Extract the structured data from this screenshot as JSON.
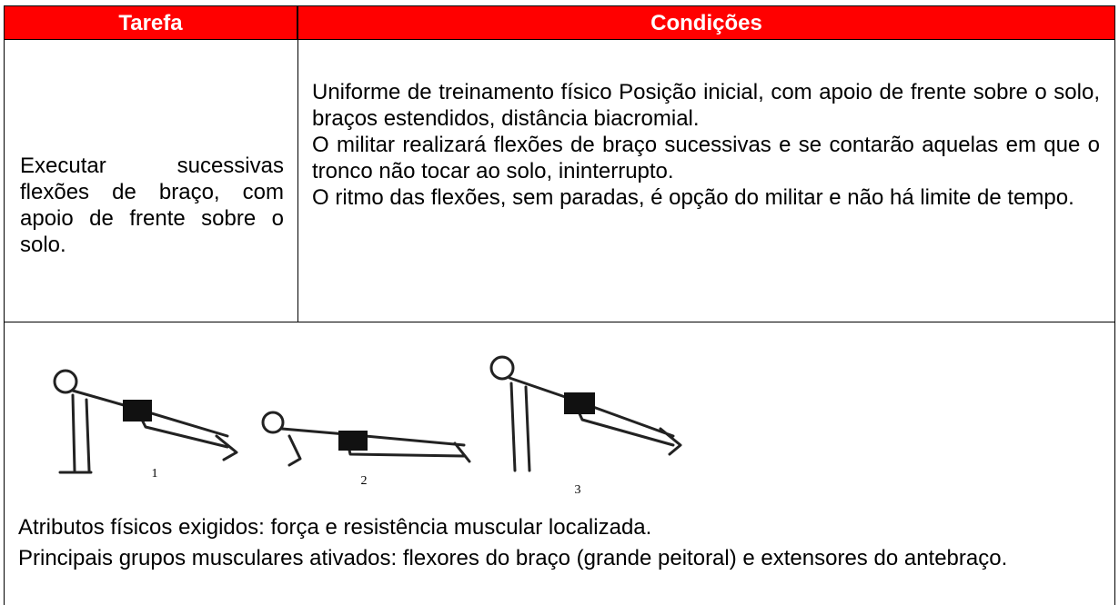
{
  "header": {
    "columns": [
      "Tarefa",
      "Condições"
    ]
  },
  "row": {
    "task": "Executar sucessivas flexões de braço, com apoio de frente sobre o solo.",
    "conditions": [
      "Uniforme de treinamento físico Posição inicial, com apoio de frente sobre o solo, braços estendidos, distância biacromial.",
      "O militar realizará flexões de braço sucessivas e se contarão aquelas em que o tronco não tocar ao solo, ininterrupto.",
      "O ritmo das flexões, sem paradas, é opção do militar e não há limite de tempo."
    ]
  },
  "figure": {
    "labels": [
      "1",
      "2",
      "3"
    ]
  },
  "notes": [
    "Atributos físicos exigidos: força e resistência muscular localizada.",
    "Principais grupos musculares ativados: flexores do braço (grande peitoral) e extensores do antebraço."
  ]
}
